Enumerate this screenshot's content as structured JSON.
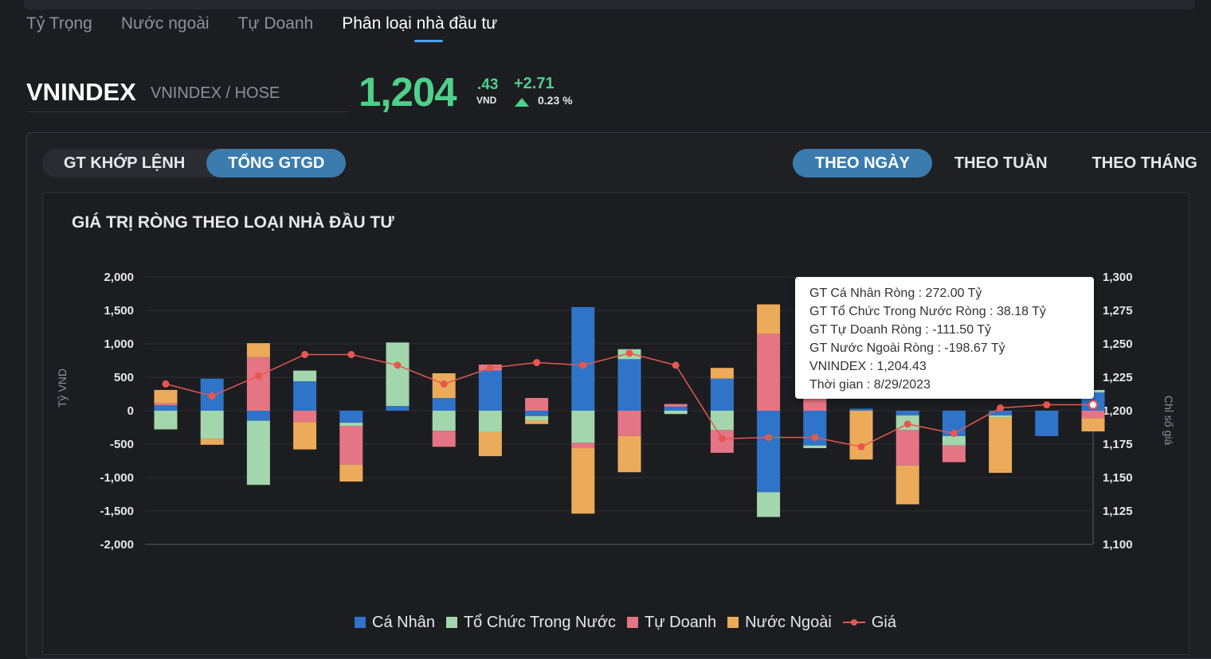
{
  "tabs": [
    "Tỷ Trọng",
    "Nước ngoài",
    "Tự Doanh",
    "Phân loại nhà đầu tư"
  ],
  "active_tab": 3,
  "ticker": {
    "symbol": "VNINDEX",
    "exchange": "VNINDEX / HOSE",
    "price_int": "1,204",
    "price_dec": ".43",
    "currency": "VND",
    "change": "+2.71",
    "change_pct": "0.23 %"
  },
  "value_toggle": {
    "options": [
      "GT KHỚP LỆNH",
      "TỔNG GTGD"
    ],
    "selected": 1
  },
  "period_toggle": {
    "options": [
      "THEO NGÀY",
      "THEO TUẦN",
      "THEO THÁNG"
    ],
    "selected": 0
  },
  "colors": {
    "ca_nhan": "#2f74c9",
    "to_chuc": "#a3d6ad",
    "tu_doanh": "#e57584",
    "nuoc_ngoai": "#ecab5a",
    "gia": "#e8574f",
    "up": "#4fd08a"
  },
  "chart_data": {
    "type": "bar",
    "title": "GIÁ TRỊ RÒNG THEO LOẠI NHÀ ĐẦU TƯ",
    "ylabel": "Tỷ VND",
    "y2label": "Chỉ số giá",
    "ylim": [
      -2000,
      2000
    ],
    "y2lim": [
      1100,
      1300
    ],
    "yticks": [
      "2,000",
      "1,500",
      "1,000",
      "500",
      "0",
      "-500",
      "-1,000",
      "-1,500",
      "-2,000"
    ],
    "y2ticks": [
      "1,300",
      "1,275",
      "1,250",
      "1,225",
      "1,200",
      "1,175",
      "1,150",
      "1,125",
      "1,100"
    ],
    "stacked": true,
    "grid": true,
    "legend_position": "bottom",
    "series": [
      {
        "name": "Cá Nhân",
        "values": [
          80,
          480,
          -150,
          440,
          -180,
          70,
          190,
          600,
          -80,
          1550,
          770,
          60,
          480,
          -1220,
          -520,
          30,
          -70,
          -380,
          -70,
          -380,
          272
        ]
      },
      {
        "name": "Tổ Chức Trong Nước",
        "values": [
          -280,
          -420,
          -960,
          160,
          -50,
          950,
          -300,
          -320,
          -70,
          -480,
          150,
          -50,
          -290,
          -370,
          -40,
          0,
          -220,
          -140,
          -30,
          0,
          38.18
        ]
      },
      {
        "name": "Tự Doanh",
        "values": [
          30,
          0,
          800,
          -170,
          -580,
          0,
          -240,
          90,
          190,
          -80,
          -380,
          40,
          -340,
          1150,
          440,
          0,
          -530,
          -250,
          0,
          0,
          -111.5
        ]
      },
      {
        "name": "Nước Ngoài",
        "values": [
          200,
          -90,
          210,
          -410,
          -250,
          0,
          370,
          -360,
          -50,
          -980,
          -540,
          0,
          160,
          440,
          110,
          -730,
          -580,
          0,
          -830,
          0,
          -198.67
        ]
      },
      {
        "name": "Giá",
        "axis": "right",
        "type": "line",
        "values": [
          1220,
          1211,
          1226,
          1242,
          1242,
          1234,
          1220,
          1232,
          1236,
          1234,
          1243,
          1234,
          1179,
          1180,
          1180,
          1173,
          1190,
          1183,
          1202,
          1204.43,
          1204.43
        ]
      }
    ]
  },
  "tooltip": {
    "lines": [
      "GT Cá Nhân Ròng  : 272.00 Tỷ",
      "GT Tổ Chức Trong Nước Ròng : 38.18 Tỷ",
      "GT Tự Doanh Ròng : -111.50 Tỷ",
      "GT Nước Ngoài Ròng : -198.67 Tỷ",
      "VNINDEX : 1,204.43",
      "Thời gian : 8/29/2023"
    ]
  },
  "legend": [
    "Cá Nhân",
    "Tổ Chức Trong Nước",
    "Tự Doanh",
    "Nước Ngoài",
    "Giá"
  ]
}
